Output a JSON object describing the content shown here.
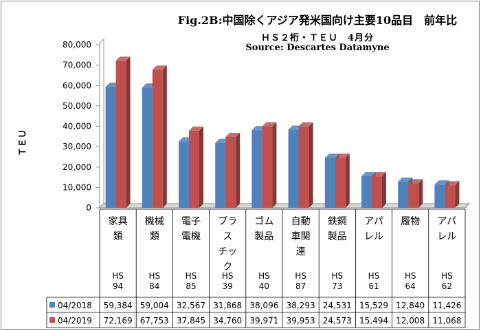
{
  "chart_data": {
    "type": "bar",
    "title": "Fig.2B:中国除くアジア発米国向け主要10品目　前年比",
    "subtitle": "ＨＳ２桁・ＴＥＵ　4月分",
    "source": "Source: Descartes Datamyne",
    "ylabel": "ＴＥＵ",
    "ylim": [
      0,
      80000
    ],
    "yticks": [
      "0",
      "10,000",
      "20,000",
      "30,000",
      "40,000",
      "50,000",
      "60,000",
      "70,000",
      "80,000"
    ],
    "categories": [
      {
        "lines": [
          "家具",
          "類"
        ],
        "hs": [
          "HS",
          "94"
        ]
      },
      {
        "lines": [
          "機械",
          "類"
        ],
        "hs": [
          "HS",
          "84"
        ]
      },
      {
        "lines": [
          "電子",
          "電機"
        ],
        "hs": [
          "HS",
          "85"
        ]
      },
      {
        "lines": [
          "プラ",
          "ス",
          "チッ",
          "ク"
        ],
        "hs": [
          "HS",
          "39"
        ]
      },
      {
        "lines": [
          "ゴム",
          "製品"
        ],
        "hs": [
          "HS",
          "40"
        ]
      },
      {
        "lines": [
          "自動",
          "車関",
          "連"
        ],
        "hs": [
          "HS",
          "87"
        ]
      },
      {
        "lines": [
          "鉄鋼",
          "製品"
        ],
        "hs": [
          "HS",
          "73"
        ]
      },
      {
        "lines": [
          "アパ",
          "レル"
        ],
        "hs": [
          "HS",
          "61"
        ]
      },
      {
        "lines": [
          "履物"
        ],
        "hs": [
          "HS",
          "64"
        ]
      },
      {
        "lines": [
          "アパ",
          "レル"
        ],
        "hs": [
          "HS",
          "62"
        ]
      }
    ],
    "series": [
      {
        "name": "04/2018",
        "color": "#4f81bd",
        "values": [
          59384,
          59004,
          32567,
          31868,
          38096,
          38293,
          24531,
          15529,
          12840,
          11426
        ],
        "labels": [
          "59,384",
          "59,004",
          "32,567",
          "31,868",
          "38,096",
          "38,293",
          "24,531",
          "15,529",
          "12,840",
          "11,426"
        ]
      },
      {
        "name": "04/2019",
        "color": "#c0504d",
        "values": [
          72169,
          67753,
          37845,
          34760,
          39971,
          39953,
          24573,
          15494,
          12008,
          11068
        ],
        "labels": [
          "72,169",
          "67,753",
          "37,845",
          "34,760",
          "39,971",
          "39,953",
          "24,573",
          "15,494",
          "12,008",
          "11,068"
        ]
      }
    ],
    "grid": false,
    "legend": "in data table, left"
  }
}
